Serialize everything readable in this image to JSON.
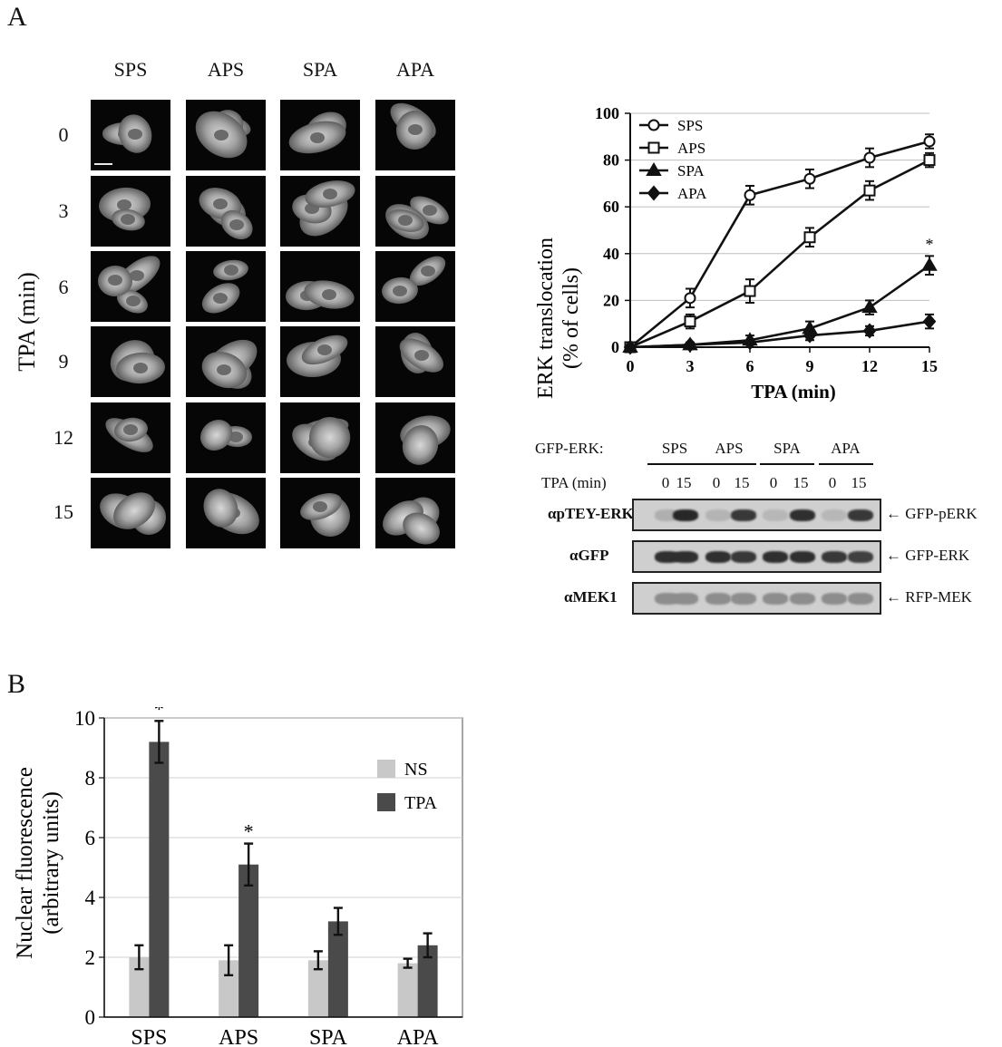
{
  "panel_a": {
    "letter": "A",
    "columns": [
      "SPS",
      "APS",
      "SPA",
      "APA"
    ],
    "rows": [
      "0",
      "3",
      "6",
      "9",
      "12",
      "15"
    ],
    "row_axis_label": "TPA (min)"
  },
  "chart_data": [
    {
      "type": "line",
      "ylabel_line1": "ERK translocation",
      "ylabel_line2": "(% of cells)",
      "xlabel": "TPA (min)",
      "x": [
        0,
        3,
        6,
        9,
        12,
        15
      ],
      "xticks": [
        "0",
        "3",
        "6",
        "9",
        "12",
        "15"
      ],
      "yticks": [
        "0",
        "20",
        "40",
        "60",
        "80",
        "100"
      ],
      "xlim": [
        0,
        15
      ],
      "ylim": [
        0,
        100
      ],
      "grid": true,
      "legend": "top-left",
      "series": [
        {
          "name": "SPS",
          "marker": "circle",
          "values": [
            0,
            21,
            65,
            72,
            81,
            88
          ],
          "errors": [
            0,
            4,
            4,
            4,
            4,
            3
          ]
        },
        {
          "name": "APS",
          "marker": "square",
          "values": [
            0,
            11,
            24,
            47,
            67,
            80
          ],
          "errors": [
            0,
            3,
            5,
            4,
            4,
            3
          ]
        },
        {
          "name": "SPA",
          "marker": "triangle",
          "values": [
            0,
            1,
            3,
            8,
            17,
            35
          ],
          "errors": [
            0,
            1,
            2,
            3,
            3,
            4
          ]
        },
        {
          "name": "APA",
          "marker": "diamond",
          "values": [
            0,
            1,
            2,
            5,
            7,
            11
          ],
          "errors": [
            0,
            1,
            1,
            2,
            2,
            3
          ]
        }
      ],
      "annotations": [
        {
          "x": 15,
          "y": 44,
          "text": "*"
        }
      ]
    },
    {
      "type": "bar",
      "ylabel_line1": "Nuclear fluorescence",
      "ylabel_line2": "(arbitrary units)",
      "categories": [
        "SPS",
        "APS",
        "SPA",
        "APA"
      ],
      "yticks": [
        "0",
        "2",
        "4",
        "6",
        "8",
        "10"
      ],
      "ylim": [
        0,
        10
      ],
      "grid": true,
      "legend": "top-right",
      "series": [
        {
          "name": "NS",
          "color": "#c8c8c8",
          "values": [
            2.0,
            1.9,
            1.9,
            1.8
          ],
          "errors": [
            0.4,
            0.5,
            0.3,
            0.15
          ]
        },
        {
          "name": "TPA",
          "color": "#4a4a4a",
          "values": [
            9.2,
            5.1,
            3.2,
            2.4
          ],
          "errors": [
            0.7,
            0.7,
            0.45,
            0.4
          ]
        }
      ],
      "annotations": [
        {
          "category": "SPS",
          "text": "*"
        },
        {
          "category": "APS",
          "text": "*"
        }
      ]
    }
  ],
  "blot": {
    "construct_label": "GFP-ERK:",
    "groups": [
      "SPS",
      "APS",
      "SPA",
      "APA"
    ],
    "tpa_label": "TPA (min)",
    "lanes": [
      "0",
      "15",
      "0",
      "15",
      "0",
      "15",
      "0",
      "15"
    ],
    "rows": [
      {
        "antibody": "αpTEY-ERK",
        "target": "GFP-pERK",
        "intensity": [
          0.15,
          0.95,
          0.12,
          0.85,
          0.1,
          0.9,
          0.1,
          0.85
        ]
      },
      {
        "antibody": "αGFP",
        "target": "GFP-ERK",
        "intensity": [
          0.9,
          0.9,
          0.9,
          0.85,
          0.9,
          0.9,
          0.85,
          0.8
        ]
      },
      {
        "antibody": "αMEK1",
        "target": "RFP-MEK",
        "intensity": [
          0.35,
          0.35,
          0.35,
          0.35,
          0.35,
          0.35,
          0.35,
          0.35
        ]
      }
    ]
  },
  "panel_b": {
    "letter": "B"
  }
}
